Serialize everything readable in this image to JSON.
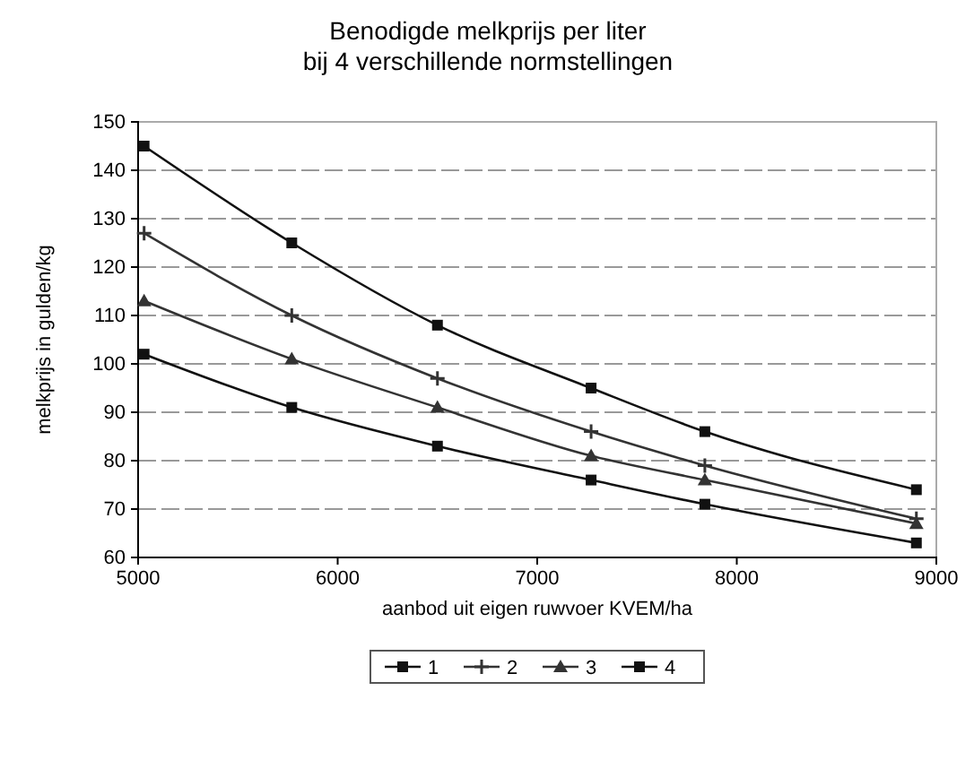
{
  "chart_data": {
    "type": "line",
    "title": "Benodigde melkprijs per liter\nbij 4 verschillende normstellingen",
    "xlabel": "aanbod uit eigen ruwvoer KVEM/ha",
    "ylabel": "melkprijs in gulden/kg",
    "xlim": [
      5000,
      9000
    ],
    "xticks": [
      5000,
      6000,
      7000,
      8000,
      9000
    ],
    "ylim": [
      60,
      150
    ],
    "yticks": [
      60,
      70,
      80,
      90,
      100,
      110,
      120,
      130,
      140,
      150
    ],
    "grid": "y",
    "legend": "bottom",
    "series": [
      {
        "name": "1",
        "color": "#111111",
        "marker": "square",
        "x": [
          5030,
          5770,
          6500,
          7270,
          7840,
          8900
        ],
        "values": [
          145,
          125,
          108,
          95,
          86,
          74
        ]
      },
      {
        "name": "2",
        "color": "#333333",
        "marker": "cross",
        "x": [
          5030,
          5770,
          6500,
          7270,
          7840,
          8900
        ],
        "values": [
          127,
          110,
          97,
          86,
          79,
          68
        ]
      },
      {
        "name": "3",
        "color": "#333333",
        "marker": "triangle",
        "x": [
          5030,
          5770,
          6500,
          7270,
          7840,
          8900
        ],
        "values": [
          113,
          101,
          91,
          81,
          76,
          67
        ]
      },
      {
        "name": "4",
        "color": "#111111",
        "marker": "square",
        "x": [
          5030,
          5770,
          6500,
          7270,
          7840,
          8900
        ],
        "values": [
          102,
          91,
          83,
          76,
          71,
          63
        ]
      }
    ]
  }
}
